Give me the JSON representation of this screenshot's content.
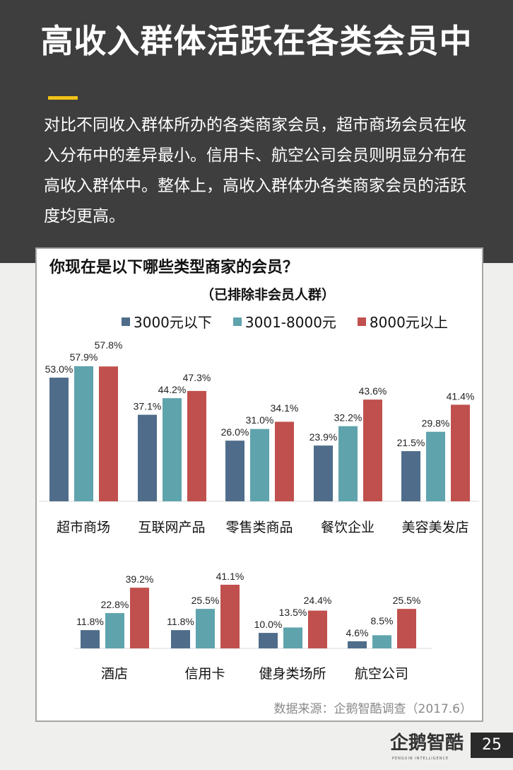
{
  "header": {
    "title": "高收入群体活跃在各类会员中",
    "description": "对比不同收入群体所办的各类商家会员，超市商场会员在收入分布中的差异最小。信用卡、航空公司会员则明显分布在高收入群体中。整体上，高收入群体办各类商家会员的活跃度均更高。",
    "accent_color": "#f2c318"
  },
  "card": {
    "question": "你现在是以下哪些类型商家的会员？",
    "subtitle": "（已排除非会员人群）",
    "source": "数据来源：企鹅智酷调查（2017.6）"
  },
  "footer": {
    "logo": "企鹅智酷",
    "logo_sub": "PENGUIN INTELLIGENCE",
    "page_number": "25"
  },
  "chart_data": [
    {
      "type": "bar",
      "title": "你现在是以下哪些类型商家的会员？",
      "subtitle": "（已排除非会员人群）",
      "legend_position": "top",
      "grid": false,
      "categories": [
        "超市商场",
        "互联网产品",
        "零售类商品",
        "餐饮企业",
        "美容美发店"
      ],
      "series": [
        {
          "name": "3000元以下",
          "color": "#4f6d8a",
          "values": [
            53.0,
            37.1,
            26.0,
            23.9,
            21.5
          ]
        },
        {
          "name": "3001-8000元",
          "color": "#5fa3ad",
          "values": [
            57.9,
            44.2,
            31.0,
            32.2,
            29.8
          ]
        },
        {
          "name": "8000元以上",
          "color": "#c0504d",
          "values": [
            57.8,
            47.3,
            34.1,
            43.6,
            41.4
          ]
        }
      ]
    },
    {
      "type": "bar",
      "grid": false,
      "categories": [
        "酒店",
        "信用卡",
        "健身类场所",
        "航空公司"
      ],
      "series": [
        {
          "name": "3000元以下",
          "color": "#4f6d8a",
          "values": [
            11.8,
            11.8,
            10.0,
            4.6
          ]
        },
        {
          "name": "3001-8000元",
          "color": "#5fa3ad",
          "values": [
            22.8,
            25.5,
            13.5,
            8.5
          ]
        },
        {
          "name": "8000元以上",
          "color": "#c0504d",
          "values": [
            39.2,
            41.1,
            24.4,
            25.5
          ]
        }
      ]
    }
  ]
}
